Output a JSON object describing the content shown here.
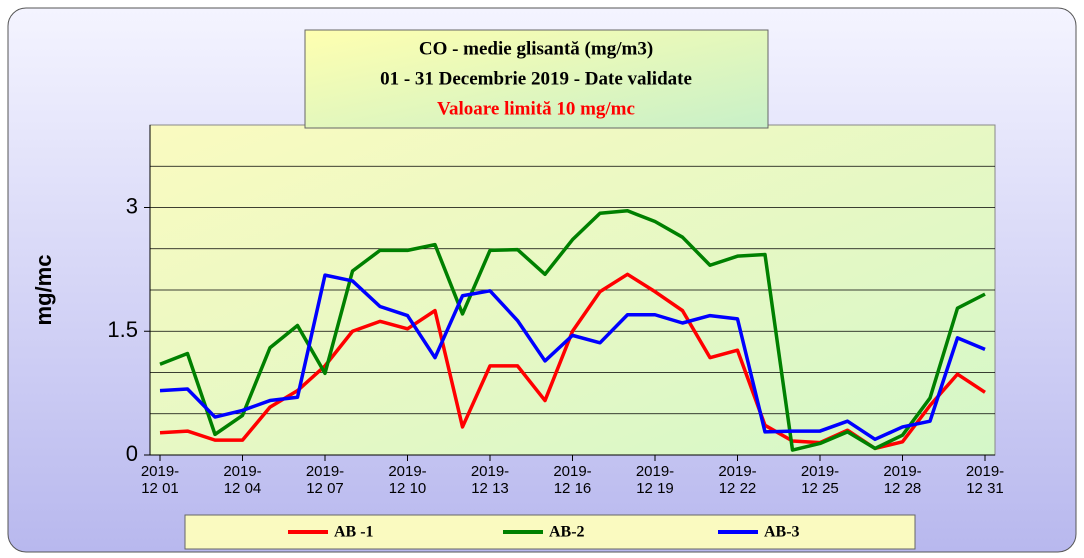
{
  "chart_data": {
    "type": "line",
    "title": "CO - medie glisantă (mg/m3)",
    "subtitle": "01 -  31 Decembrie 2019 - Date validate",
    "annotation": "Valoare limită 10 mg/mc",
    "y_label": "mg/mc",
    "categories": [
      "2019-\n12 01",
      null,
      null,
      "2019-\n12 04",
      null,
      null,
      "2019-\n12 07",
      null,
      null,
      "2019-\n12 10",
      null,
      null,
      "2019-\n12 13",
      null,
      null,
      "2019-\n12 16",
      null,
      null,
      "2019-\n12 19",
      null,
      null,
      "2019-\n12 22",
      null,
      null,
      "2019-\n12 25",
      null,
      null,
      "2019-\n12 28",
      null,
      null,
      "2019-\n12 31"
    ],
    "series": [
      {
        "name": "AB -1",
        "color": "#ff0000",
        "values": [
          0.27,
          0.29,
          0.18,
          0.18,
          0.58,
          0.78,
          1.08,
          1.5,
          1.62,
          1.53,
          1.75,
          0.34,
          1.08,
          1.08,
          0.66,
          1.5,
          1.98,
          2.19,
          1.98,
          1.75,
          1.18,
          1.27,
          0.36,
          0.17,
          0.15,
          0.3,
          0.08,
          0.16,
          0.6,
          0.98,
          0.76
        ]
      },
      {
        "name": "AB-2",
        "color": "#008000",
        "values": [
          1.1,
          1.23,
          0.25,
          0.48,
          1.3,
          1.57,
          0.99,
          2.23,
          2.48,
          2.48,
          2.55,
          1.71,
          2.48,
          2.49,
          2.19,
          2.61,
          2.93,
          2.96,
          2.83,
          2.64,
          2.3,
          2.41,
          2.43,
          0.06,
          0.14,
          0.28,
          0.08,
          0.24,
          0.69,
          1.78,
          1.95
        ]
      },
      {
        "name": "AB-3",
        "color": "#0000ff",
        "values": [
          0.78,
          0.8,
          0.46,
          0.54,
          0.66,
          0.7,
          2.18,
          2.11,
          1.8,
          1.69,
          1.18,
          1.93,
          1.99,
          1.63,
          1.14,
          1.45,
          1.36,
          1.7,
          1.7,
          1.6,
          1.69,
          1.65,
          0.28,
          0.29,
          0.29,
          0.41,
          0.19,
          0.34,
          0.41,
          1.42,
          1.28
        ]
      }
    ],
    "ylim": [
      0,
      4
    ],
    "yticks": [
      0,
      1.5,
      3
    ],
    "ygrid": [
      0.5,
      1,
      1.5,
      2,
      2.5,
      3,
      3.5
    ],
    "grid": true
  }
}
